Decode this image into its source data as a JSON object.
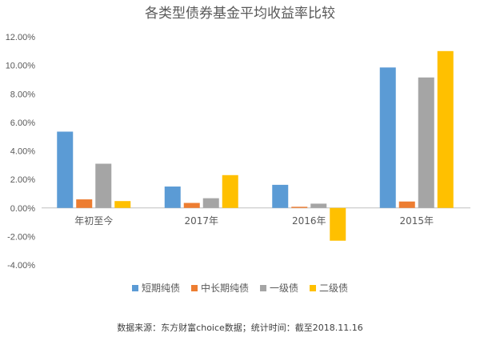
{
  "chart_data": {
    "type": "bar",
    "title": "各类型债券基金平均收益率比较",
    "categories": [
      "年初至今",
      "2017年",
      "2016年",
      "2015年"
    ],
    "series": [
      {
        "name": "短期纯债",
        "color": "#5B9BD5",
        "values": [
          5.35,
          1.5,
          1.62,
          9.85
        ]
      },
      {
        "name": "中长期纯债",
        "color": "#ED7D31",
        "values": [
          0.6,
          0.35,
          0.08,
          0.45
        ]
      },
      {
        "name": "一级债",
        "color": "#A5A5A5",
        "values": [
          3.1,
          0.68,
          0.3,
          9.15
        ]
      },
      {
        "name": "二级债",
        "color": "#FFC000",
        "values": [
          0.48,
          2.3,
          -2.3,
          11.0
        ]
      }
    ],
    "ylim": [
      -4,
      12
    ],
    "yticks": [
      "12.00%",
      "10.00%",
      "8.00%",
      "6.00%",
      "4.00%",
      "2.00%",
      "0.00%",
      "-2.00%",
      "-4.00%"
    ],
    "ytick_values": [
      12,
      10,
      8,
      6,
      4,
      2,
      0,
      -2,
      -4
    ],
    "grid": false,
    "legend_position": "bottom",
    "source": "数据来源：东方财富choice数据；统计时间：截至2018.11.16"
  }
}
